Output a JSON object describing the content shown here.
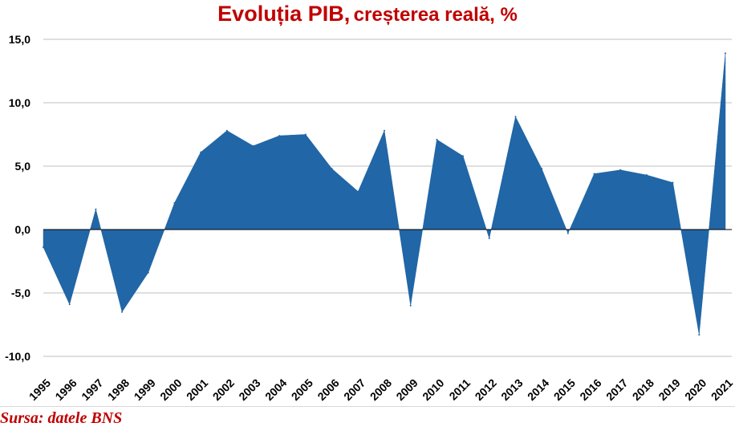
{
  "title": {
    "main": "Evoluția PIB,",
    "sub": "creșterea reală, %"
  },
  "source": "Sursa:  datele BNS",
  "colors": {
    "area": "#2166a6",
    "title": "#c00000",
    "grid": "#bfbfbf",
    "axis": "#000000"
  },
  "chart_data": {
    "type": "area",
    "title": "Evoluția PIB, creșterea reală, %",
    "x": [
      "1995",
      "1996",
      "1997",
      "1998",
      "1999",
      "2000",
      "2001",
      "2002",
      "2003",
      "2004",
      "2005",
      "2006",
      "2007",
      "2008",
      "2009",
      "2010",
      "2011",
      "2012",
      "2013",
      "2014",
      "2015",
      "2016",
      "2017",
      "2018",
      "2019",
      "2020",
      "2021"
    ],
    "series": [
      {
        "values": [
          -1.4,
          -5.9,
          1.6,
          -6.5,
          -3.4,
          2.1,
          6.1,
          7.8,
          6.6,
          7.4,
          7.5,
          4.8,
          3.0,
          7.8,
          -6.0,
          7.1,
          5.8,
          -0.7,
          8.9,
          4.8,
          -0.3,
          4.4,
          4.7,
          4.3,
          3.7,
          -8.3,
          13.9
        ]
      }
    ],
    "y_ticks": [
      "15,0",
      "10,0",
      "5,0",
      "0,0",
      "-5,0",
      "-10,0"
    ],
    "ylim": [
      -10,
      15
    ],
    "grid": true,
    "legend": "none"
  }
}
